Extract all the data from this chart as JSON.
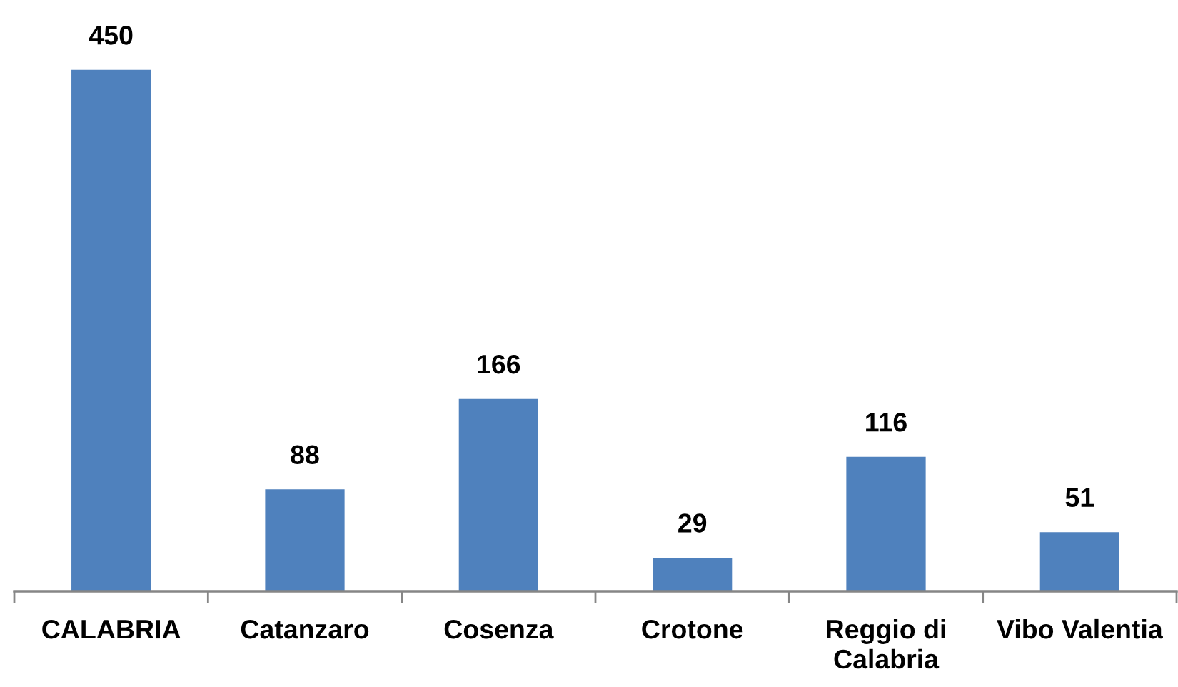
{
  "chart_data": {
    "type": "bar",
    "categories": [
      "CALABRIA",
      "Catanzaro",
      "Cosenza",
      "Crotone",
      "Reggio di\nCalabria",
      "Vibo Valentia"
    ],
    "values": [
      450,
      88,
      166,
      29,
      116,
      51
    ],
    "color": "#4f81bd",
    "data_labels": true,
    "grid": false,
    "legend": false
  }
}
